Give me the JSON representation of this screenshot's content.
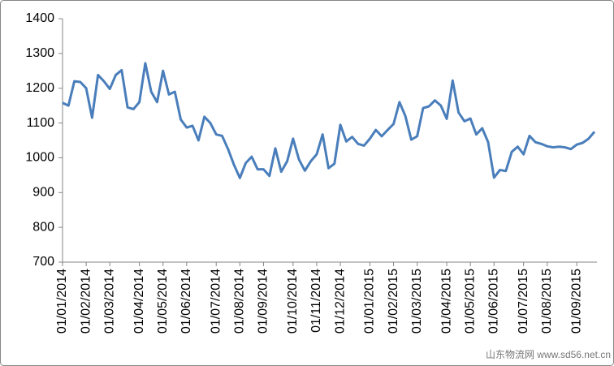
{
  "chart_data": {
    "type": "line",
    "categories": [
      "01/01/2014",
      null,
      null,
      null,
      "01/02/2014",
      null,
      null,
      null,
      "01/03/2014",
      null,
      null,
      null,
      null,
      "01/04/2014",
      null,
      null,
      null,
      "01/05/2014",
      null,
      null,
      null,
      "01/06/2014",
      null,
      null,
      null,
      null,
      "01/07/2014",
      null,
      null,
      null,
      "01/08/2014",
      null,
      null,
      null,
      "01/09/2014",
      null,
      null,
      null,
      null,
      "01/10/2014",
      null,
      null,
      null,
      "01/11/2014",
      null,
      null,
      null,
      "01/12/2014",
      null,
      null,
      null,
      null,
      "01/01/2015",
      null,
      null,
      null,
      "01/02/2015",
      null,
      null,
      null,
      "01/03/2015",
      null,
      null,
      null,
      null,
      "01/04/2015",
      null,
      null,
      null,
      "01/05/2015",
      null,
      null,
      null,
      "01/06/2015",
      null,
      null,
      null,
      null,
      "01/07/2015",
      null,
      null,
      null,
      "01/08/2015",
      null,
      null,
      null,
      null,
      "01/09/2015",
      null,
      null,
      null
    ],
    "values": [
      1158,
      1150,
      1220,
      1218,
      1200,
      1115,
      1238,
      1220,
      1198,
      1238,
      1252,
      1145,
      1140,
      1160,
      1272,
      1190,
      1160,
      1250,
      1182,
      1190,
      1110,
      1087,
      1092,
      1050,
      1118,
      1100,
      1067,
      1063,
      1025,
      980,
      942,
      985,
      1003,
      967,
      967,
      948,
      1027,
      960,
      990,
      1055,
      995,
      963,
      990,
      1010,
      1067,
      970,
      983,
      1095,
      1047,
      1060,
      1040,
      1035,
      1055,
      1080,
      1062,
      1080,
      1097,
      1160,
      1120,
      1052,
      1062,
      1143,
      1148,
      1165,
      1150,
      1112,
      1222,
      1130,
      1105,
      1113,
      1067,
      1085,
      1045,
      943,
      965,
      962,
      1017,
      1032,
      1010,
      1063,
      1045,
      1040,
      1033,
      1030,
      1032,
      1030,
      1025,
      1038,
      1043,
      1055,
      1075
    ],
    "color": "#4a7ebb",
    "ylim": [
      700,
      1400
    ],
    "yticks": [
      700,
      800,
      900,
      1000,
      1100,
      1200,
      1300,
      1400
    ],
    "grid": false,
    "watermark": "山东物流网 www.sd56.net.cn"
  }
}
